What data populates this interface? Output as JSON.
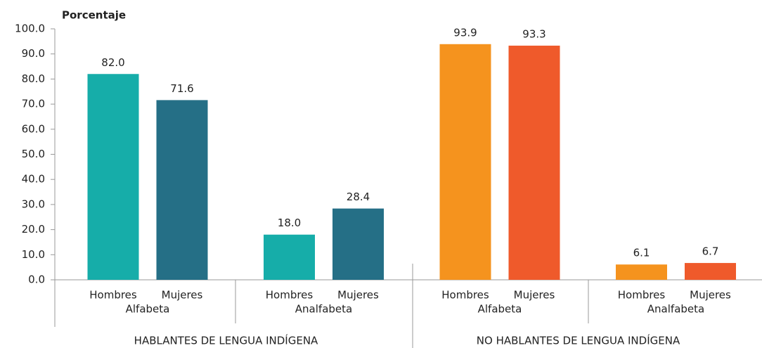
{
  "chart_data": {
    "type": "bar",
    "y_label": "Porcentaje",
    "categories": [
      "Hombres",
      "Mujeres",
      "Hombres",
      "Mujeres",
      "Hombres",
      "Mujeres",
      "Hombres",
      "Mujeres"
    ],
    "groups": [
      "Alfabeta",
      "Analfabeta",
      "Alfabeta",
      "Analfabeta"
    ],
    "supergroups": [
      "HABLANTES DE LENGUA INDÍGENA",
      "NO HABLANTES DE LENGUA INDÍGENA"
    ],
    "values": [
      82.0,
      71.6,
      18.0,
      28.4,
      93.9,
      93.3,
      6.1,
      6.7
    ],
    "value_labels": [
      "82.0",
      "71.6",
      "18.0",
      "28.4",
      "93.9",
      "93.3",
      "6.1",
      "6.7"
    ],
    "colors": [
      "#16ada9",
      "#256f86",
      "#16ada9",
      "#256f86",
      "#f5931e",
      "#ef5a2b",
      "#f5931e",
      "#ef5a2b"
    ],
    "ylim": [
      0,
      100
    ],
    "yticks": [
      {
        "value": 0,
        "label": "0.0"
      },
      {
        "value": 10,
        "label": "10.0"
      },
      {
        "value": 20,
        "label": "20.0"
      },
      {
        "value": 30,
        "label": "30.0"
      },
      {
        "value": 40,
        "label": "40.0"
      },
      {
        "value": 50,
        "label": "50.0"
      },
      {
        "value": 60,
        "label": "60.0"
      },
      {
        "value": 70,
        "label": "70.0"
      },
      {
        "value": 80,
        "label": "80.0"
      },
      {
        "value": 90,
        "label": "90.0"
      },
      {
        "value": 100,
        "label": "100.0"
      }
    ]
  }
}
